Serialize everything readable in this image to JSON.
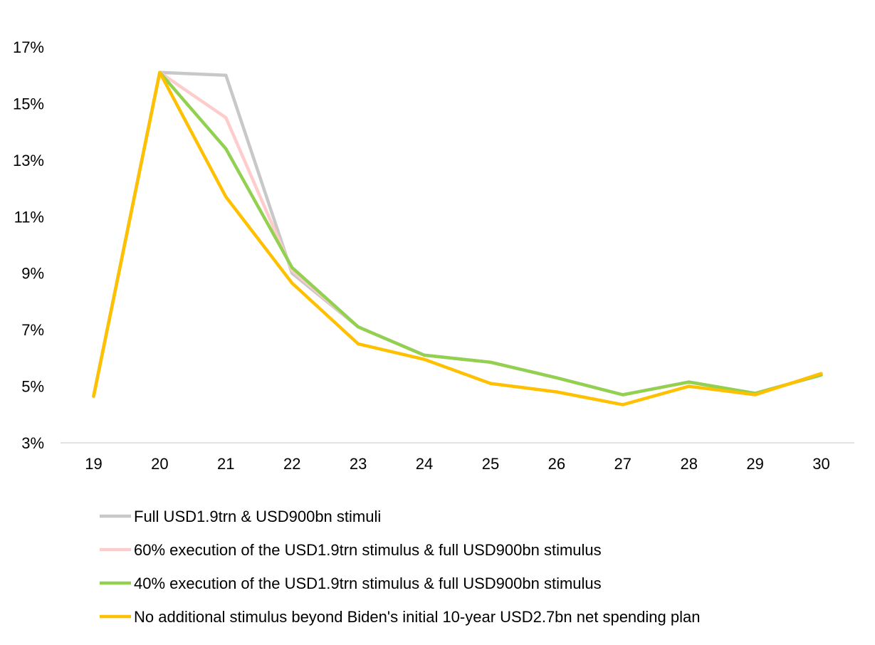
{
  "chart_data": {
    "type": "line",
    "x": [
      "19",
      "20",
      "21",
      "22",
      "23",
      "24",
      "25",
      "26",
      "27",
      "28",
      "29",
      "30"
    ],
    "yticks": [
      "3%",
      "5%",
      "7%",
      "9%",
      "11%",
      "13%",
      "15%",
      "17%"
    ],
    "ylim": [
      3,
      17
    ],
    "grid": false,
    "legend_position": "bottom",
    "series": [
      {
        "name": "Full USD1.9trn & USD900bn stimuli",
        "color": "#c8c8c8",
        "values": [
          4.65,
          16.1,
          16.0,
          9.0,
          7.1,
          6.1,
          5.85,
          5.3,
          4.7,
          5.15,
          4.75,
          5.4
        ]
      },
      {
        "name": "60% execution of the USD1.9trn stimulus & full USD900bn stimulus",
        "color": "#ffcccc",
        "values": [
          4.65,
          16.1,
          14.5,
          9.1,
          7.1,
          6.1,
          5.85,
          5.3,
          4.7,
          5.15,
          4.75,
          5.4
        ]
      },
      {
        "name": "40% execution of the USD1.9trn stimulus & full USD900bn stimulus",
        "color": "#92d050",
        "values": [
          4.65,
          16.1,
          13.4,
          9.2,
          7.1,
          6.1,
          5.85,
          5.3,
          4.7,
          5.15,
          4.75,
          5.4
        ]
      },
      {
        "name": "No additional stimulus beyond Biden's initial 10-year USD2.7bn net spending plan",
        "color": "#ffc000",
        "values": [
          4.65,
          16.1,
          11.7,
          8.65,
          6.5,
          5.95,
          5.1,
          4.8,
          4.35,
          5.0,
          4.7,
          5.45
        ]
      }
    ]
  }
}
